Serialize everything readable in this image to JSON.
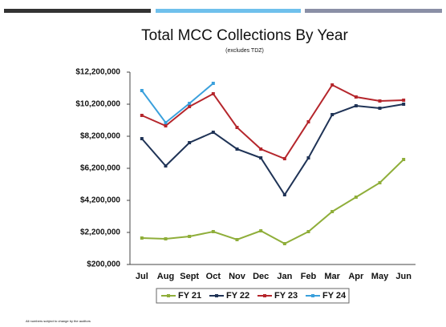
{
  "chart_data": {
    "type": "line",
    "title": "Total MCC Collections By Year",
    "subtitle": "(excludes TDZ)",
    "footnote": "All numbers subject to change by the auditors",
    "categories": [
      "Jul",
      "Aug",
      "Sept",
      "Oct",
      "Nov",
      "Dec",
      "Jan",
      "Feb",
      "Mar",
      "Apr",
      "May",
      "Jun"
    ],
    "series": [
      {
        "name": "FY 21",
        "color": "#8fae3a",
        "values": [
          1850000,
          1800000,
          1950000,
          2250000,
          1750000,
          2300000,
          1500000,
          2250000,
          3500000,
          4400000,
          5300000,
          6750000
        ]
      },
      {
        "name": "FY 22",
        "color": "#1f3356",
        "values": [
          8050000,
          6350000,
          7800000,
          8450000,
          7400000,
          6850000,
          4550000,
          6850000,
          9550000,
          10100000,
          9950000,
          10200000
        ]
      },
      {
        "name": "FY 23",
        "color": "#b5262c",
        "values": [
          9500000,
          8850000,
          10050000,
          10850000,
          8750000,
          7400000,
          6800000,
          9100000,
          11400000,
          10650000,
          10400000,
          10450000
        ]
      },
      {
        "name": "FY 24",
        "color": "#3aa0dc",
        "values": [
          11050000,
          9050000,
          10250000,
          11500000,
          null,
          null,
          null,
          null,
          null,
          null,
          null,
          null
        ]
      }
    ],
    "ylim": [
      200000,
      12200000
    ],
    "yticks": [
      {
        "value": 200000,
        "label": "$200,000"
      },
      {
        "value": 2200000,
        "label": "$2,200,000"
      },
      {
        "value": 4200000,
        "label": "$4,200,000"
      },
      {
        "value": 6200000,
        "label": "$6,200,000"
      },
      {
        "value": 8200000,
        "label": "$8,200,000"
      },
      {
        "value": 10200000,
        "label": "$10,200,000"
      },
      {
        "value": 12200000,
        "label": "$12,200,000"
      }
    ],
    "grid": false,
    "legend": "bottom"
  }
}
